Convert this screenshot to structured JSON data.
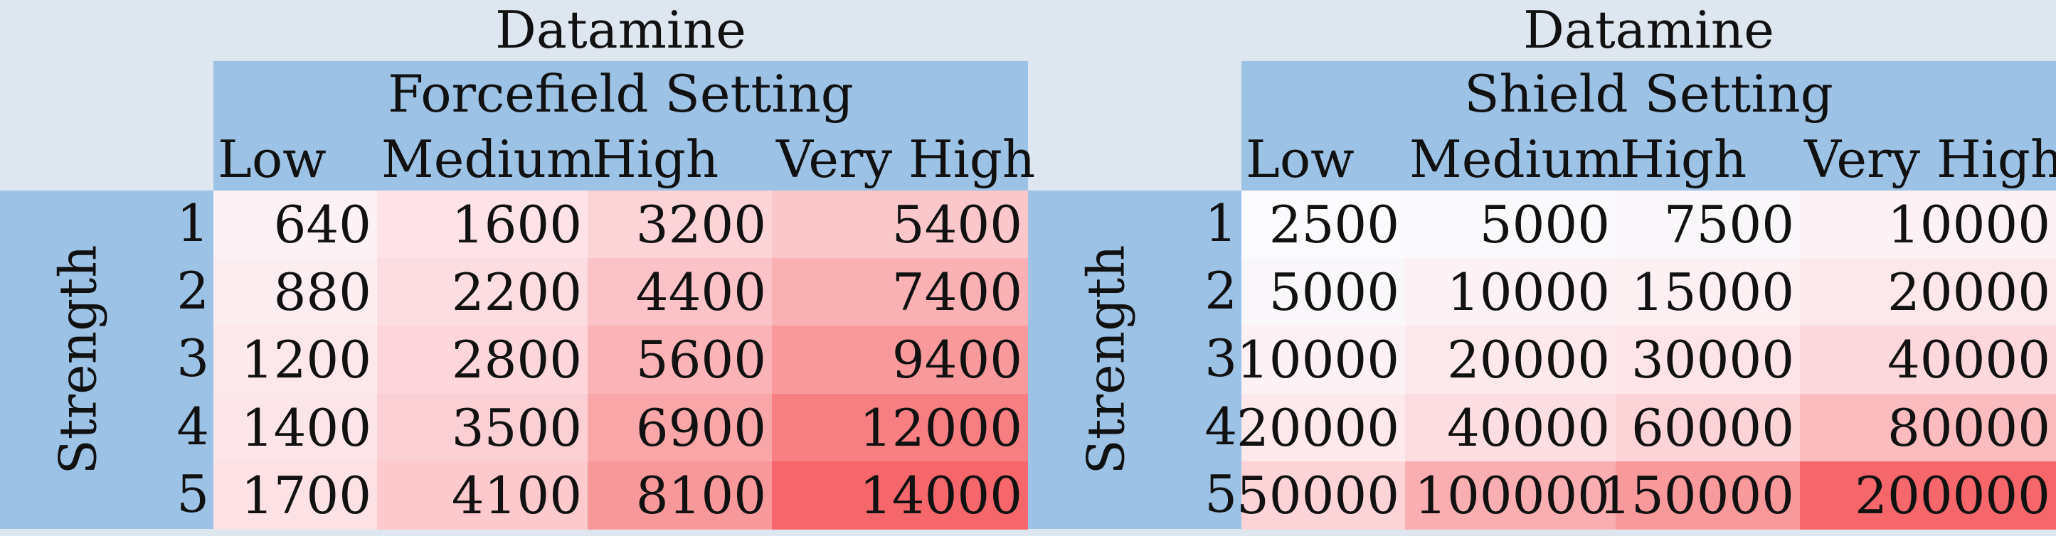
{
  "tables": [
    {
      "title": "Datamine",
      "setting": "Forcefield Setting",
      "row_axis": "Strength",
      "columns": [
        "Low",
        "Medium",
        "High",
        "Very High"
      ],
      "rows": [
        "1",
        "2",
        "3",
        "4",
        "5"
      ],
      "values": [
        [
          "640",
          "1600",
          "3200",
          "5400"
        ],
        [
          "880",
          "2200",
          "4400",
          "7400"
        ],
        [
          "1200",
          "2800",
          "5600",
          "9400"
        ],
        [
          "1400",
          "3500",
          "6900",
          "12000"
        ],
        [
          "1700",
          "4100",
          "8100",
          "14000"
        ]
      ],
      "colors": [
        [
          "#fcf2f5",
          "#fde3e8",
          "#fcd3d7",
          "#fac8cb"
        ],
        [
          "#fcedf0",
          "#fcdde1",
          "#fbc3c7",
          "#f9b1b4"
        ],
        [
          "#fce7eb",
          "#fcd6da",
          "#fab3b6",
          "#f89a9c"
        ],
        [
          "#fce5e9",
          "#fbd0d4",
          "#f9a6a8",
          "#f77f81"
        ],
        [
          "#fce1e5",
          "#fcc9cd",
          "#f7989a",
          "#f5676a"
        ]
      ]
    },
    {
      "title": "Datamine",
      "setting": "Shield Setting",
      "row_axis": "Strength",
      "columns": [
        "Low",
        "Medium",
        "High",
        "Very High"
      ],
      "rows": [
        "1",
        "2",
        "3",
        "4",
        "5"
      ],
      "values": [
        [
          "2500",
          "5000",
          "7500",
          "10000"
        ],
        [
          "5000",
          "10000",
          "15000",
          "20000"
        ],
        [
          "10000",
          "20000",
          "30000",
          "40000"
        ],
        [
          "20000",
          "40000",
          "60000",
          "80000"
        ],
        [
          "50000",
          "100000",
          "150000",
          "200000"
        ]
      ],
      "colors": [
        [
          "#fbfbfe",
          "#faf9fc",
          "#f9f7fa",
          "#fcf2f5"
        ],
        [
          "#f9f7fa",
          "#fcf2f5",
          "#fcf0f3",
          "#fce7eb"
        ],
        [
          "#fcf2f5",
          "#fde9ec",
          "#fce4e8",
          "#fcd7db"
        ],
        [
          "#fde9ec",
          "#fcdde1",
          "#fcd3d7",
          "#fbbcbf"
        ],
        [
          "#fcd3d7",
          "#f9aeb1",
          "#f8999b",
          "#f5676a"
        ]
      ]
    }
  ]
}
